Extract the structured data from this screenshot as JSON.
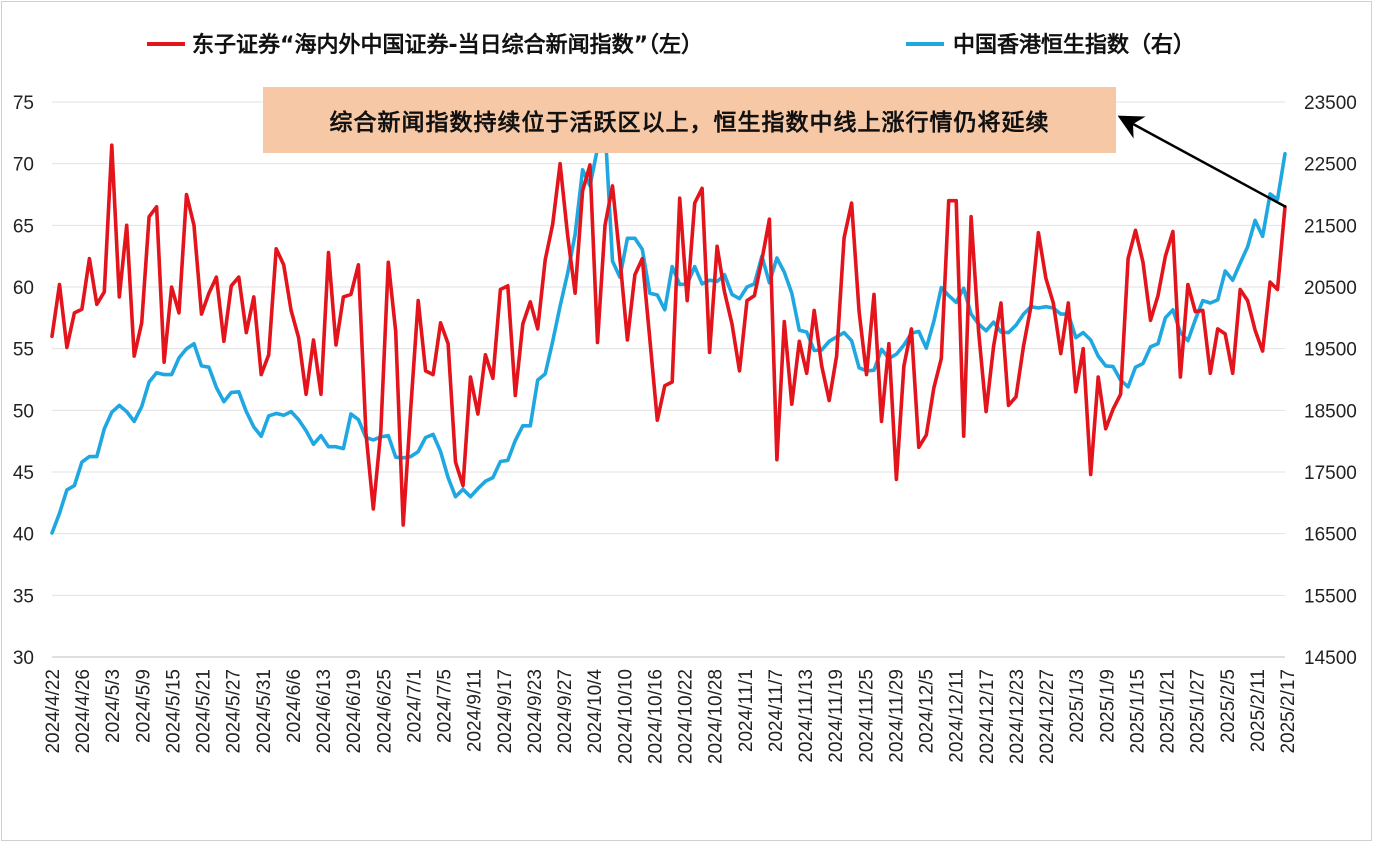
{
  "chart_data": {
    "type": "line",
    "title": "",
    "legend": {
      "placement": "top",
      "entries": [
        "东子证券“海内外中国证券-当日综合新闻指数”（左）",
        "中国香港恒生指数（右）"
      ]
    },
    "annotation": {
      "text": "综合新闻指数持续位于活跃区以上，恒生指数中线上涨行情仍将延续",
      "arrow": "pointing from the latest data point to the annotation box"
    },
    "grid": "horizontal",
    "y_left": {
      "range": [
        30,
        75
      ],
      "ticks": [
        "30",
        "35",
        "40",
        "45",
        "50",
        "55",
        "60",
        "65",
        "70",
        "75"
      ]
    },
    "y_right": {
      "range": [
        14500,
        23500
      ],
      "ticks": [
        "14500",
        "15500",
        "16500",
        "17500",
        "18500",
        "19500",
        "20500",
        "21500",
        "22500",
        "23500"
      ]
    },
    "x_tick_labels": [
      "2024/4/22",
      "2024/4/26",
      "2024/5/3",
      "2024/5/9",
      "2024/5/15",
      "2024/5/21",
      "2024/5/27",
      "2024/5/31",
      "2024/6/6",
      "2024/6/13",
      "2024/6/19",
      "2024/6/25",
      "2024/7/1",
      "2024/7/5",
      "2024/9/11",
      "2024/9/17",
      "2024/9/23",
      "2024/9/27",
      "2024/10/4",
      "2024/10/10",
      "2024/10/16",
      "2024/10/22",
      "2024/10/28",
      "2024/11/1",
      "2024/11/7",
      "2024/11/13",
      "2024/11/19",
      "2024/11/25",
      "2024/11/29",
      "2024/12/5",
      "2024/12/11",
      "2024/12/17",
      "2024/12/23",
      "2024/12/27",
      "2025/1/3",
      "2025/1/9",
      "2025/1/15",
      "2025/1/21",
      "2025/1/27",
      "2025/2/5",
      "2025/2/11",
      "2025/2/17"
    ],
    "series": [
      {
        "name": "东子证券“海内外中国证券-当日综合新闻指数”（左）",
        "axis": "left",
        "color": "#e3141b",
        "values": [
          56.0,
          60.2,
          55.1,
          57.9,
          58.2,
          62.3,
          58.6,
          59.6,
          71.5,
          59.2,
          65.0,
          54.4,
          57.1,
          65.7,
          66.5,
          53.9,
          60.0,
          57.9,
          67.5,
          65.0,
          57.8,
          59.5,
          60.8,
          55.6,
          60.1,
          60.8,
          56.3,
          59.2,
          52.9,
          54.5,
          63.1,
          61.8,
          58.1,
          55.9,
          51.3,
          55.7,
          51.3,
          62.8,
          55.3,
          59.2,
          59.4,
          61.8,
          48.2,
          42.0,
          48.3,
          62.0,
          56.4,
          40.7,
          50.1,
          58.9,
          53.2,
          52.9,
          57.1,
          55.4,
          45.8,
          43.9,
          52.7,
          49.7,
          54.5,
          52.6,
          59.8,
          60.1,
          51.2,
          57.0,
          58.8,
          56.6,
          62.2,
          65.1,
          70.0,
          64.2,
          59.5,
          67.8,
          69.9,
          55.5,
          65.0,
          68.2,
          62.3,
          55.7,
          61.0,
          62.3,
          55.8,
          49.2,
          52.0,
          52.3,
          67.2,
          58.9,
          66.8,
          68.0,
          54.7,
          63.3,
          59.6,
          57.0,
          53.2,
          58.9,
          59.3,
          62.2,
          65.5,
          46.0,
          57.2,
          50.5,
          55.6,
          53.0,
          58.1,
          53.6,
          50.8,
          54.4,
          64.0,
          66.8,
          58.0,
          52.9,
          59.4,
          49.1,
          55.4,
          44.4,
          53.6,
          56.6,
          47.0,
          48.0,
          51.8,
          54.2,
          67.0,
          67.0,
          47.9,
          65.7,
          56.4,
          49.9,
          55.2,
          58.7,
          50.4,
          51.1,
          55.2,
          58.4,
          64.4,
          60.7,
          58.7,
          54.6,
          58.7,
          51.5,
          55.0,
          44.8,
          52.7,
          48.5,
          50.1,
          51.3,
          62.3,
          64.6,
          62.0,
          57.3,
          59.3,
          62.5,
          64.5,
          52.7,
          60.2,
          58.0,
          58.1,
          53.0,
          56.6,
          56.2,
          53.0,
          59.8,
          58.9,
          56.5,
          54.8,
          60.4,
          59.8,
          66.5
        ]
      },
      {
        "name": "中国香港恒生指数（右）",
        "axis": "right",
        "color": "#1ea7e1",
        "values": [
          16510,
          16830,
          17210,
          17280,
          17660,
          17750,
          17750,
          18200,
          18470,
          18580,
          18480,
          18320,
          18560,
          18960,
          19110,
          19080,
          19080,
          19350,
          19500,
          19580,
          19220,
          19200,
          18870,
          18640,
          18790,
          18800,
          18480,
          18230,
          18080,
          18410,
          18450,
          18420,
          18480,
          18350,
          18170,
          17950,
          18090,
          17910,
          17910,
          17880,
          18440,
          18350,
          18060,
          18020,
          18070,
          18090,
          17740,
          17730,
          17750,
          17830,
          18060,
          18110,
          17830,
          17410,
          17100,
          17220,
          17100,
          17230,
          17350,
          17410,
          17670,
          17690,
          18010,
          18250,
          18250,
          18990,
          19090,
          19620,
          20190,
          20720,
          21350,
          22400,
          22140,
          22750,
          23100,
          20920,
          20660,
          21290,
          21290,
          21110,
          20400,
          20370,
          20130,
          20830,
          20540,
          20550,
          20830,
          20550,
          20610,
          20590,
          20700,
          20380,
          20310,
          20500,
          20550,
          21000,
          20570,
          20970,
          20740,
          20400,
          19800,
          19770,
          19470,
          19480,
          19620,
          19690,
          19760,
          19630,
          19190,
          19140,
          19150,
          19490,
          19340,
          19410,
          19560,
          19750,
          19780,
          19510,
          19940,
          20490,
          20360,
          20250,
          20480,
          20060,
          19900,
          19790,
          19930,
          19770,
          19760,
          19880,
          20060,
          20180,
          20160,
          20180,
          20160,
          20060,
          20060,
          19680,
          19760,
          19640,
          19380,
          19220,
          19210,
          18990,
          18880,
          19200,
          19260,
          19530,
          19580,
          20000,
          20130,
          19760,
          19630,
          19970,
          20280,
          20240,
          20290,
          20760,
          20610,
          20890,
          21150,
          21580,
          21320,
          22010,
          21920,
          22660
        ]
      }
    ]
  }
}
